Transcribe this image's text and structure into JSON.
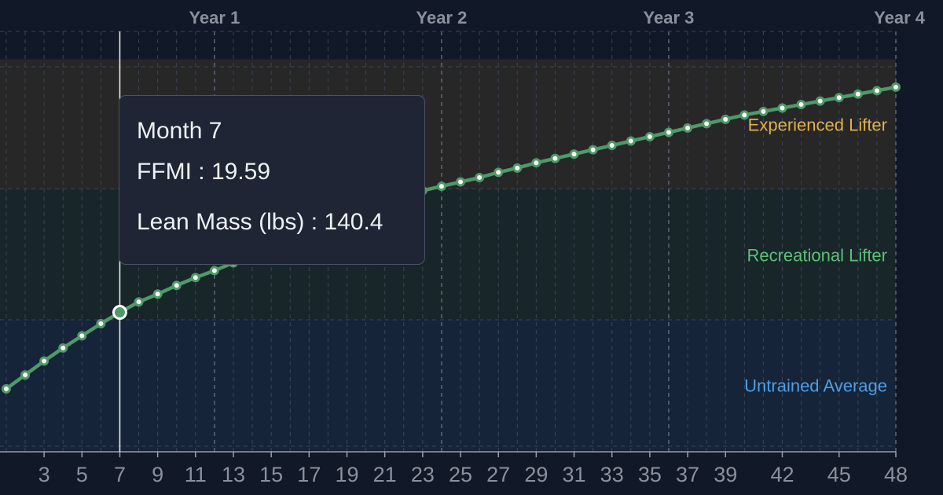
{
  "chart_data": {
    "type": "line",
    "x": [
      1,
      2,
      3,
      4,
      5,
      6,
      7,
      8,
      9,
      10,
      11,
      12,
      13,
      14,
      15,
      16,
      17,
      18,
      19,
      20,
      21,
      22,
      23,
      24,
      25,
      26,
      27,
      28,
      29,
      30,
      31,
      32,
      33,
      34,
      35,
      36,
      37,
      38,
      39,
      40,
      41,
      42,
      43,
      44,
      45,
      46,
      47,
      48
    ],
    "series": [
      {
        "values": [
          18.71,
          18.87,
          19.03,
          19.18,
          19.32,
          19.46,
          19.59,
          19.71,
          19.8,
          19.9,
          19.99,
          20.07,
          20.16,
          20.26,
          20.36,
          20.45,
          20.54,
          20.63,
          20.71,
          20.79,
          20.86,
          20.93,
          20.99,
          21.04,
          21.09,
          21.14,
          21.2,
          21.25,
          21.31,
          21.36,
          21.41,
          21.46,
          21.51,
          21.56,
          21.61,
          21.66,
          21.71,
          21.76,
          21.81,
          21.86,
          21.9,
          21.94,
          21.98,
          22.02,
          22.06,
          22.1,
          22.14,
          22.18
        ],
        "color": "#4f9a68"
      }
    ],
    "x_tick_labels": [
      "3",
      "5",
      "7",
      "9",
      "11",
      "13",
      "15",
      "17",
      "19",
      "21",
      "23",
      "25",
      "27",
      "29",
      "31",
      "33",
      "35",
      "37",
      "39",
      "42",
      "45",
      "48"
    ],
    "x_tick_values": [
      3,
      5,
      7,
      9,
      11,
      13,
      15,
      17,
      19,
      21,
      23,
      25,
      27,
      29,
      31,
      33,
      35,
      37,
      39,
      42,
      45,
      48
    ],
    "year_markers": [
      {
        "label": "Year 1",
        "month": 12
      },
      {
        "label": "Year 2",
        "month": 24
      },
      {
        "label": "Year 3",
        "month": 36
      },
      {
        "label": "Year 4",
        "month": 48
      }
    ],
    "bands": [
      {
        "label": "Experienced Lifter",
        "from": 21,
        "to": 22.5,
        "color": "#272727",
        "label_color": "#e0b04f"
      },
      {
        "label": "Recreational Lifter",
        "from": 19.5,
        "to": 21,
        "color": "#18262a",
        "label_color": "#5fbf77"
      },
      {
        "label": "Untrained Average",
        "from": 18,
        "to": 19.5,
        "color": "#16243a",
        "label_color": "#4e9ee6"
      }
    ],
    "highlight": {
      "month": 7,
      "ffmi": 19.59
    },
    "xlim": [
      0.2,
      48
    ],
    "ylim": [
      17.9,
      23.1
    ],
    "grid": true
  },
  "tooltip": {
    "title": "Month 7",
    "row1": "FFMI : 19.59",
    "row2": "Lean Mass (lbs) : 140.4"
  },
  "colors": {
    "background": "#111827",
    "grid": "#3c4454",
    "line": "#4f9a68",
    "tick_text": "#8a909c",
    "year_text": "#8a909c"
  }
}
